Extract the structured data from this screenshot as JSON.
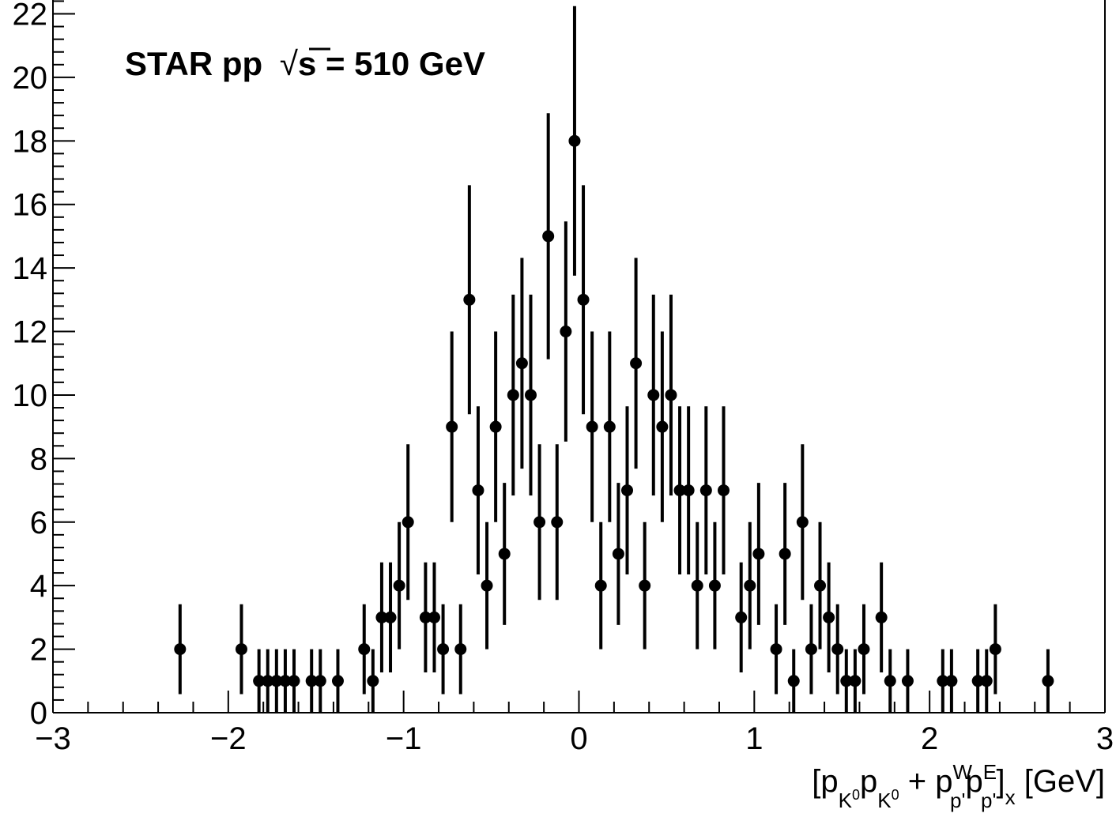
{
  "chart_data": {
    "type": "scatter",
    "title": "",
    "annotation_prefix": "STAR pp ",
    "annotation_root": "s",
    "annotation_suffix": " = 510 GeV",
    "xlabel": "[p_{K^0} p_{K^0} + p^W_{p'} p^E_{p'}]_x [GeV]",
    "xlabel_parts": {
      "open": "[p",
      "sub1": "K",
      "sup_zero": "0",
      "mid": "p",
      "plus": " + p",
      "supW": "W",
      "subp": "p'",
      "supE": "E",
      "close": "]",
      "subx": "x",
      "unit": " [GeV]"
    },
    "ylabel": "",
    "xlim": [
      -3,
      3
    ],
    "ylim": [
      0,
      22.5
    ],
    "x_ticks": [
      -3,
      -2,
      -1,
      0,
      1,
      2,
      3
    ],
    "x_tick_labels": [
      "−3",
      "−2",
      "−1",
      "0",
      "1",
      "2",
      "3"
    ],
    "y_ticks": [
      0,
      2,
      4,
      6,
      8,
      10,
      12,
      14,
      16,
      18,
      20,
      22
    ],
    "y_tick_labels": [
      "0",
      "2",
      "4",
      "6",
      "8",
      "10",
      "12",
      "14",
      "16",
      "18",
      "20",
      "22"
    ],
    "grid": false,
    "error_bars": "sqrt(N)",
    "points": [
      {
        "x": -2.275,
        "y": 2
      },
      {
        "x": -1.925,
        "y": 2
      },
      {
        "x": -1.825,
        "y": 1
      },
      {
        "x": -1.775,
        "y": 1
      },
      {
        "x": -1.725,
        "y": 1
      },
      {
        "x": -1.675,
        "y": 1
      },
      {
        "x": -1.625,
        "y": 1
      },
      {
        "x": -1.525,
        "y": 1
      },
      {
        "x": -1.475,
        "y": 1
      },
      {
        "x": -1.375,
        "y": 1
      },
      {
        "x": -1.225,
        "y": 2
      },
      {
        "x": -1.175,
        "y": 1
      },
      {
        "x": -1.125,
        "y": 3
      },
      {
        "x": -1.075,
        "y": 3
      },
      {
        "x": -1.025,
        "y": 4
      },
      {
        "x": -0.975,
        "y": 6
      },
      {
        "x": -0.875,
        "y": 3
      },
      {
        "x": -0.825,
        "y": 3
      },
      {
        "x": -0.775,
        "y": 2
      },
      {
        "x": -0.725,
        "y": 9
      },
      {
        "x": -0.675,
        "y": 2
      },
      {
        "x": -0.625,
        "y": 13
      },
      {
        "x": -0.575,
        "y": 7
      },
      {
        "x": -0.525,
        "y": 4
      },
      {
        "x": -0.475,
        "y": 9
      },
      {
        "x": -0.425,
        "y": 5
      },
      {
        "x": -0.375,
        "y": 10
      },
      {
        "x": -0.325,
        "y": 11
      },
      {
        "x": -0.275,
        "y": 10
      },
      {
        "x": -0.225,
        "y": 6
      },
      {
        "x": -0.175,
        "y": 15
      },
      {
        "x": -0.125,
        "y": 6
      },
      {
        "x": -0.075,
        "y": 12
      },
      {
        "x": -0.025,
        "y": 18
      },
      {
        "x": 0.025,
        "y": 13
      },
      {
        "x": 0.075,
        "y": 9
      },
      {
        "x": 0.125,
        "y": 4
      },
      {
        "x": 0.175,
        "y": 9
      },
      {
        "x": 0.225,
        "y": 5
      },
      {
        "x": 0.275,
        "y": 7
      },
      {
        "x": 0.325,
        "y": 11
      },
      {
        "x": 0.375,
        "y": 4
      },
      {
        "x": 0.425,
        "y": 10
      },
      {
        "x": 0.475,
        "y": 9
      },
      {
        "x": 0.525,
        "y": 10
      },
      {
        "x": 0.575,
        "y": 7
      },
      {
        "x": 0.625,
        "y": 7
      },
      {
        "x": 0.675,
        "y": 4
      },
      {
        "x": 0.725,
        "y": 7
      },
      {
        "x": 0.775,
        "y": 4
      },
      {
        "x": 0.825,
        "y": 7
      },
      {
        "x": 0.925,
        "y": 3
      },
      {
        "x": 0.975,
        "y": 4
      },
      {
        "x": 1.025,
        "y": 5
      },
      {
        "x": 1.125,
        "y": 2
      },
      {
        "x": 1.175,
        "y": 5
      },
      {
        "x": 1.225,
        "y": 1
      },
      {
        "x": 1.275,
        "y": 6
      },
      {
        "x": 1.325,
        "y": 2
      },
      {
        "x": 1.375,
        "y": 4
      },
      {
        "x": 1.425,
        "y": 3
      },
      {
        "x": 1.475,
        "y": 2
      },
      {
        "x": 1.525,
        "y": 1
      },
      {
        "x": 1.575,
        "y": 1
      },
      {
        "x": 1.625,
        "y": 2
      },
      {
        "x": 1.725,
        "y": 3
      },
      {
        "x": 1.775,
        "y": 1
      },
      {
        "x": 1.875,
        "y": 1
      },
      {
        "x": 2.075,
        "y": 1
      },
      {
        "x": 2.125,
        "y": 1
      },
      {
        "x": 2.275,
        "y": 1
      },
      {
        "x": 2.325,
        "y": 1
      },
      {
        "x": 2.375,
        "y": 2
      },
      {
        "x": 2.675,
        "y": 1
      }
    ]
  }
}
